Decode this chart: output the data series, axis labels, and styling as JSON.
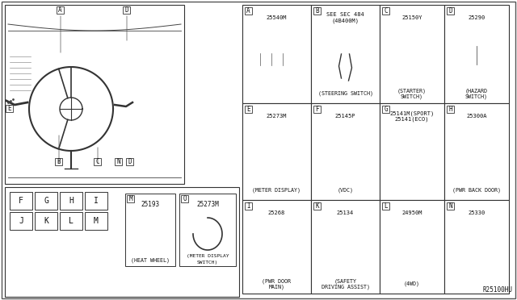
{
  "bg_color": "#ffffff",
  "diagram_id": "R25100HU",
  "grid_parts": [
    {
      "id": "A",
      "part_num": "25540M",
      "label": "",
      "col": 0,
      "row": 0
    },
    {
      "id": "B",
      "part_num": "SEE SEC 484\n(4B400M)",
      "label": "(STEERING SWITCH)",
      "col": 1,
      "row": 0
    },
    {
      "id": "C",
      "part_num": "25150Y",
      "label": "(STARTER)\nSWITCH)",
      "col": 2,
      "row": 0
    },
    {
      "id": "D",
      "part_num": "25290",
      "label": "(HAZARD\nSWITCH)",
      "col": 3,
      "row": 0
    },
    {
      "id": "E",
      "part_num": "25273M",
      "label": "(METER DISPLAY)",
      "col": 0,
      "row": 1
    },
    {
      "id": "F",
      "part_num": "25145P",
      "label": "(VDC)",
      "col": 1,
      "row": 1
    },
    {
      "id": "G",
      "part_num": "25141M(SPORT)\n25141(ECO)",
      "label": "",
      "col": 2,
      "row": 1
    },
    {
      "id": "H",
      "part_num": "25300A",
      "label": "(PWR BACK DOOR)",
      "col": 3,
      "row": 1
    },
    {
      "id": "I",
      "part_num": "25268",
      "label": "(PWR DOOR\nMAIN)",
      "col": 0,
      "row": 2
    },
    {
      "id": "K",
      "part_num": "25134",
      "label": "(SAFETY\nDRIVING ASSIST)",
      "col": 1,
      "row": 2
    },
    {
      "id": "L",
      "part_num": "24950M",
      "label": "(4WD)",
      "col": 2,
      "row": 2
    },
    {
      "id": "N",
      "part_num": "25330",
      "label": "",
      "col": 3,
      "row": 2
    }
  ],
  "bottom_parts": [
    {
      "id": "M",
      "part_num": "25193",
      "label": "(HEAT WHEEL)"
    },
    {
      "id": "O",
      "part_num": "25273M",
      "label": "(METER DISPLAY\nSWITCH)"
    }
  ],
  "button_grid": [
    "F",
    "G",
    "H",
    "I",
    "J",
    "K",
    "L",
    "M"
  ],
  "lc": "#222222",
  "tc": "#111111"
}
